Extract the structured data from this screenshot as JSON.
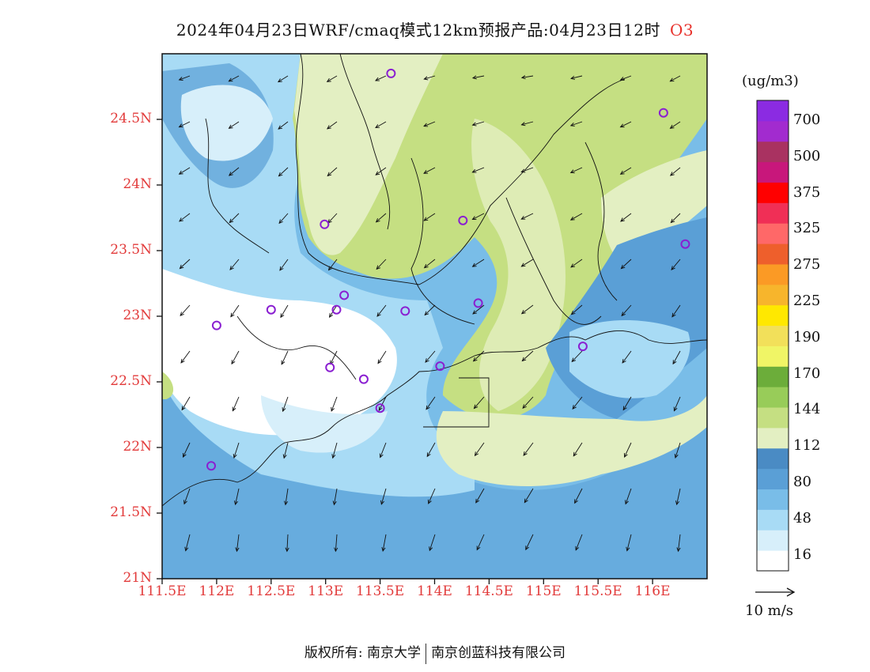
{
  "title": {
    "main": "2024年04月23日WRF/cmaq模式12km预报产品:04月23日12时",
    "variable": "O3"
  },
  "map": {
    "lat_ticks": [
      "24.5N",
      "24N",
      "23.5N",
      "23N",
      "22.5N",
      "22N",
      "21.5N",
      "21N"
    ],
    "lon_ticks": [
      "111.5E",
      "112E",
      "112.5E",
      "113E",
      "113.5E",
      "114E",
      "114.5E",
      "115E",
      "115.5E",
      "116E"
    ],
    "lon_range": [
      111.5,
      116.5
    ],
    "lat_range": [
      21.0,
      25.0
    ]
  },
  "colorbar": {
    "unit": "(ug/m3)",
    "labels": [
      "700",
      "500",
      "375",
      "325",
      "275",
      "225",
      "190",
      "170",
      "144",
      "112",
      "80",
      "48",
      "16"
    ],
    "colors": [
      "#ffffff",
      "#d7effa",
      "#a8dbf5",
      "#79bde8",
      "#5a9fd6",
      "#4a8bc4",
      "#e3efc2",
      "#c5df82",
      "#98cc59",
      "#6cad3a",
      "#f0f566",
      "#f2e05a",
      "#ffe800",
      "#f7b52c",
      "#fb9a25",
      "#ee5f2c",
      "#ff6868",
      "#f02f56",
      "#ff0000",
      "#c8177b",
      "#a93261",
      "#a22bcf",
      "#8b2be2"
    ]
  },
  "stations": [
    [
      113.6,
      24.85
    ],
    [
      116.1,
      24.55
    ],
    [
      112.99,
      23.7
    ],
    [
      114.26,
      23.73
    ],
    [
      116.3,
      23.55
    ],
    [
      112.5,
      23.05
    ],
    [
      112.0,
      22.93
    ],
    [
      113.17,
      23.16
    ],
    [
      113.1,
      23.05
    ],
    [
      113.73,
      23.04
    ],
    [
      114.4,
      23.1
    ],
    [
      113.04,
      22.61
    ],
    [
      113.35,
      22.52
    ],
    [
      114.05,
      22.62
    ],
    [
      113.5,
      22.3
    ],
    [
      115.36,
      22.77
    ],
    [
      111.95,
      21.86
    ]
  ],
  "wind_reference": {
    "label": "10 m/s"
  },
  "footer": {
    "copyright": "版权所有: 南京大学",
    "company": "南京创蓝科技有限公司"
  }
}
